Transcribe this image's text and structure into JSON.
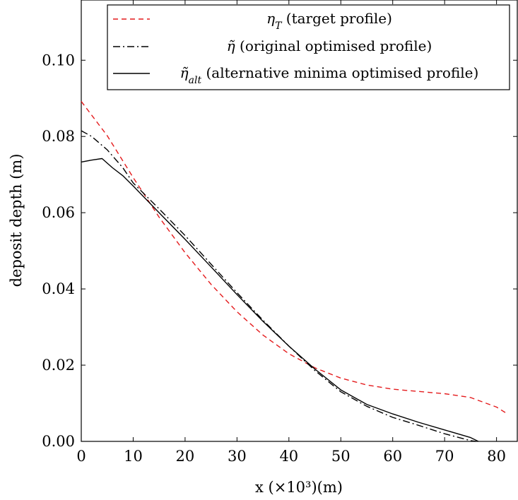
{
  "chart_data": {
    "type": "line",
    "xlabel": "x (×10³)(m)",
    "ylabel": "deposit depth (m)",
    "xlim": [
      0,
      84
    ],
    "ylim": [
      0,
      0.1158
    ],
    "xticks": [
      0,
      10,
      20,
      30,
      40,
      50,
      60,
      70,
      80
    ],
    "xtick_labels": [
      "0",
      "10",
      "20",
      "30",
      "40",
      "50",
      "60",
      "70",
      "80"
    ],
    "yticks": [
      0,
      0.02,
      0.04,
      0.06,
      0.08,
      0.1
    ],
    "ytick_labels": [
      "0.00",
      "0.02",
      "0.04",
      "0.06",
      "0.08",
      "0.10"
    ],
    "grid": false,
    "legend_position": "top-right",
    "series": [
      {
        "name": "ηT (target profile)",
        "legend_symbol": "η",
        "legend_sub": "T",
        "legend_rest": " (target profile)",
        "color": "#e41a1c",
        "dash": "dashed",
        "x": [
          0,
          5,
          10,
          15,
          20,
          25,
          30,
          35,
          40,
          45,
          50,
          55,
          60,
          65,
          70,
          75,
          80,
          82
        ],
        "y": [
          0.0892,
          0.0802,
          0.0692,
          0.0588,
          0.0495,
          0.0412,
          0.034,
          0.0279,
          0.023,
          0.0193,
          0.0166,
          0.0148,
          0.0137,
          0.0131,
          0.0125,
          0.0115,
          0.009,
          0.0073
        ]
      },
      {
        "name": "η̃ (original optimised profile)",
        "legend_symbol": "η̃",
        "legend_sub": "",
        "legend_rest": " (original optimised profile)",
        "color": "#000000",
        "dash": "dashdot",
        "x": [
          0,
          2,
          5,
          8,
          10,
          15,
          20,
          25,
          30,
          35,
          40,
          45,
          50,
          55,
          60,
          65,
          70,
          75,
          76
        ],
        "y": [
          0.0815,
          0.08,
          0.0765,
          0.0718,
          0.0678,
          0.061,
          0.054,
          0.0465,
          0.039,
          0.0318,
          0.025,
          0.0186,
          0.013,
          0.0092,
          0.0063,
          0.0042,
          0.002,
          0.0002,
          0.0
        ]
      },
      {
        "name": "η̃alt (alternative minima optimised profile)",
        "legend_symbol": "η̃",
        "legend_sub": "alt",
        "legend_rest": " (alternative minima optimised profile)",
        "color": "#000000",
        "dash": "solid",
        "x": [
          0,
          2,
          4,
          6,
          8,
          10,
          15,
          20,
          25,
          30,
          35,
          40,
          45,
          50,
          55,
          60,
          65,
          70,
          75,
          76.5
        ],
        "y": [
          0.0733,
          0.0738,
          0.0742,
          0.0718,
          0.0697,
          0.067,
          0.06,
          0.053,
          0.0458,
          0.0385,
          0.0315,
          0.025,
          0.019,
          0.0135,
          0.0097,
          0.0072,
          0.005,
          0.003,
          0.001,
          0.0
        ]
      }
    ]
  }
}
